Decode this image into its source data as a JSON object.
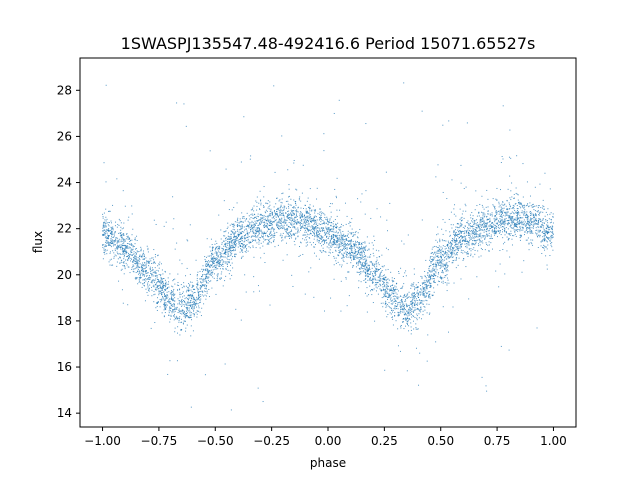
{
  "chart_data": {
    "type": "scatter",
    "title": "1SWASPJ135547.48-492416.6 Period 15071.65527s",
    "xlabel": "phase",
    "ylabel": "flux",
    "xlim": [
      -1.1,
      1.1
    ],
    "ylim": [
      13.4,
      29.4
    ],
    "grid": false,
    "legend": "none",
    "marker_color": "#1f77b4",
    "xticks": [
      -1.0,
      -0.75,
      -0.5,
      -0.25,
      0.0,
      0.25,
      0.5,
      0.75,
      1.0
    ],
    "xtick_labels": [
      "−1.00",
      "−0.75",
      "−0.50",
      "−0.25",
      "0.00",
      "0.25",
      "0.50",
      "0.75",
      "1.00"
    ],
    "yticks": [
      14,
      16,
      18,
      20,
      22,
      24,
      26,
      28
    ],
    "ytick_labels": [
      "14",
      "16",
      "18",
      "20",
      "22",
      "24",
      "26",
      "28"
    ],
    "phase_range": [
      -1.0,
      1.0
    ],
    "trend": {
      "phase": [
        -1.0,
        -0.9,
        -0.8,
        -0.7,
        -0.65,
        -0.6,
        -0.5,
        -0.4,
        -0.3,
        -0.2,
        -0.15,
        -0.1,
        0.0,
        0.1,
        0.2,
        0.3,
        0.35,
        0.4,
        0.5,
        0.6,
        0.7,
        0.8,
        0.85,
        0.9,
        1.0
      ],
      "flux": [
        21.8,
        21.2,
        20.1,
        18.9,
        18.5,
        18.9,
        20.6,
        21.6,
        22.1,
        22.4,
        22.4,
        22.3,
        21.8,
        21.2,
        20.1,
        18.9,
        18.5,
        18.9,
        20.6,
        21.6,
        22.1,
        22.4,
        22.4,
        22.3,
        21.8
      ]
    },
    "scatter_sigma": 0.45,
    "outlier_range": [
      14.0,
      28.7
    ]
  }
}
